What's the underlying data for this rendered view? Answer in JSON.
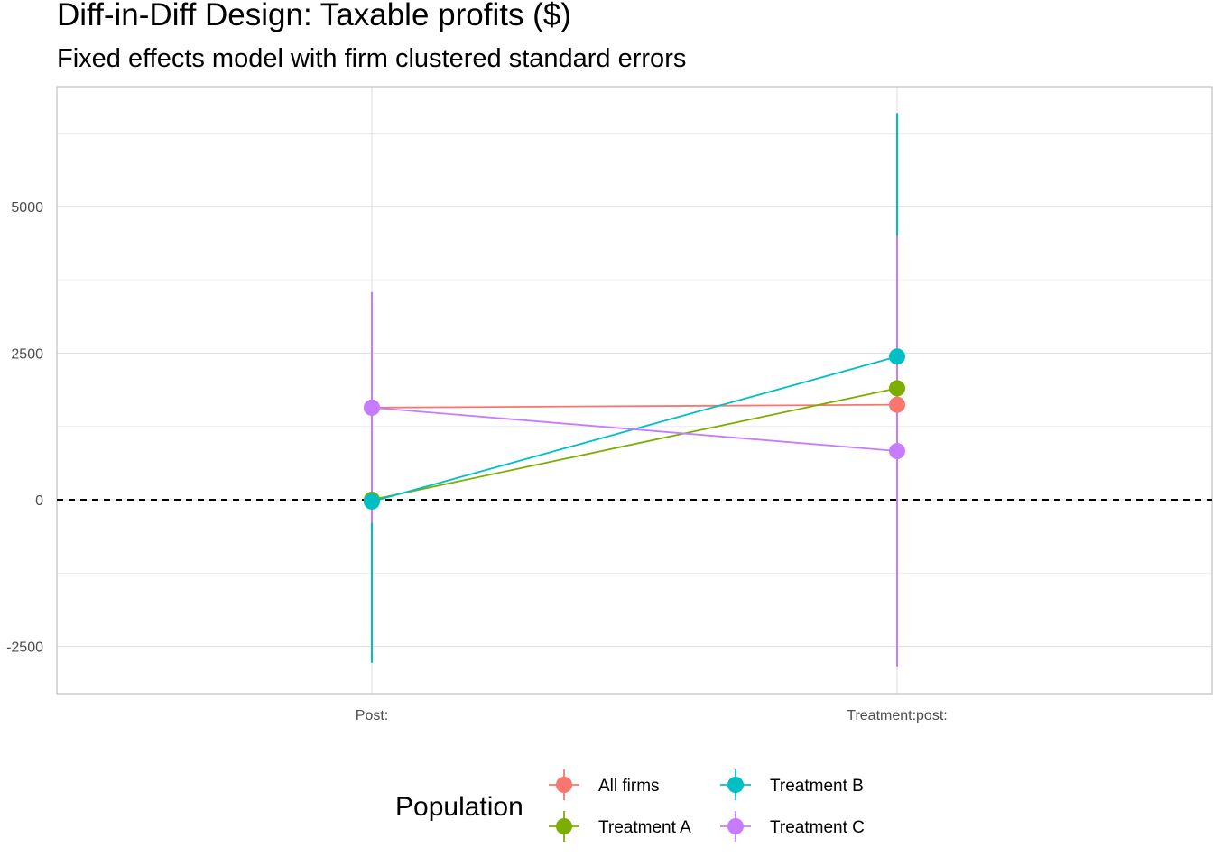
{
  "chart_data": {
    "type": "scatter",
    "title": "Diff-in-Diff Design: Taxable profits  ($)",
    "subtitle": "Fixed effects model with firm clustered standard errors",
    "xlabel": "",
    "ylabel": "",
    "categories": [
      "Post:",
      "Treatment:post:"
    ],
    "ylim": [
      -3300,
      7000
    ],
    "y_ticks": [
      -2500,
      0,
      2500,
      5000
    ],
    "y_tick_labels": [
      "-2500",
      "0",
      "2500",
      "5000"
    ],
    "grid": true,
    "reference_line": {
      "y": 0,
      "style": "dashed",
      "color": "#000000"
    },
    "legend": {
      "title": "Population",
      "position": "bottom"
    },
    "series": [
      {
        "name": "All firms",
        "color": "#F8766D",
        "values": [
          1570,
          1620
        ],
        "lower": [
          null,
          null
        ],
        "upper": [
          null,
          null
        ]
      },
      {
        "name": "Treatment A",
        "color": "#7CAE00",
        "values": [
          0,
          1900
        ],
        "lower": [
          null,
          null
        ],
        "upper": [
          null,
          null
        ]
      },
      {
        "name": "Treatment B",
        "color": "#00BFC4",
        "values": [
          -30,
          2440
        ],
        "lower": [
          -2780,
          -1000
        ],
        "upper": [
          2700,
          6590
        ]
      },
      {
        "name": "Treatment C",
        "color": "#C77CFF",
        "values": [
          1570,
          830
        ],
        "lower": [
          -390,
          -2840
        ],
        "upper": [
          3540,
          4500
        ]
      }
    ]
  }
}
